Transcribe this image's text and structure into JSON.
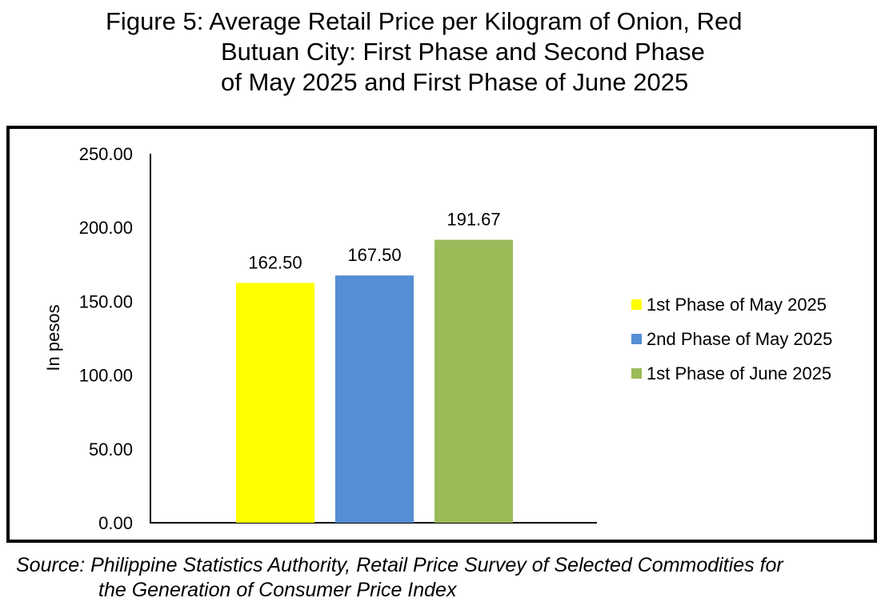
{
  "title": {
    "line1": "Figure 5: Average Retail Price per Kilogram of Onion, Red",
    "line2": "Butuan City: First Phase and Second Phase",
    "line3": "of May 2025 and First Phase of June 2025"
  },
  "source": {
    "line1": "Source: Philippine Statistics Authority, Retail Price Survey of Selected Commodities for",
    "line2": "the Generation of Consumer Price Index"
  },
  "chart_data": {
    "type": "bar",
    "ylabel": "In pesos",
    "xlabel": "",
    "ylim": [
      0,
      250
    ],
    "yticks": [
      "0.00",
      "50.00",
      "100.00",
      "150.00",
      "200.00",
      "250.00"
    ],
    "grid": false,
    "legend_position": "right",
    "series": [
      {
        "name": "1st Phase of May 2025",
        "value": 162.5,
        "label": "162.50",
        "color": "#ffff00"
      },
      {
        "name": "2nd Phase of May 2025",
        "value": 167.5,
        "label": "167.50",
        "color": "#558ed5"
      },
      {
        "name": "1st Phase of June 2025",
        "value": 191.67,
        "label": "191.67",
        "color": "#9bbb59"
      }
    ]
  }
}
